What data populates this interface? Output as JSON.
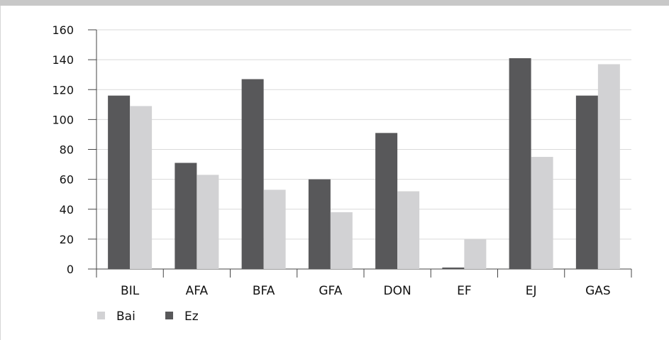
{
  "chart_data": {
    "type": "bar",
    "categories": [
      "BIL",
      "AFA",
      "BFA",
      "GFA",
      "DON",
      "EF",
      "EJ",
      "GAS"
    ],
    "series": [
      {
        "name": "Ez",
        "color": "#58585a",
        "values": [
          116,
          71,
          127,
          60,
          91,
          1,
          141,
          116
        ]
      },
      {
        "name": "Bai",
        "color": "#d2d2d4",
        "values": [
          109,
          63,
          53,
          38,
          52,
          20,
          75,
          137
        ]
      }
    ],
    "legend_order": [
      "Bai",
      "Ez"
    ],
    "ylim": [
      0,
      160
    ],
    "yticks": [
      "0",
      "20",
      "40",
      "60",
      "80",
      "100",
      "120",
      "140",
      "160"
    ],
    "grid": true,
    "legend_position": "bottom-left"
  }
}
